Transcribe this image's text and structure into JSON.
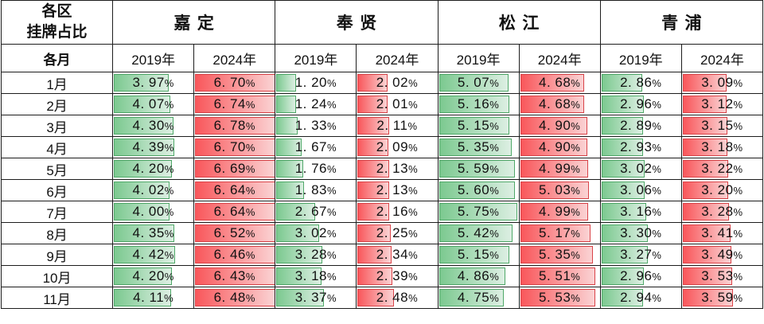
{
  "table": {
    "corner_line1": "各区",
    "corner_line2": "挂牌占比",
    "month_col_header": "各月"
  },
  "colors": {
    "bar_green_start": "#7cc990",
    "bar_green_end": "#ddefe3",
    "bar_green_border": "#4fa868",
    "bar_red_start": "#f9575b",
    "bar_red_end": "#fad3d4",
    "bar_red_border": "#d94348",
    "grid_line": "#1d1d1d",
    "text": "#111111"
  },
  "chart_data": {
    "type": "table",
    "title": "各区挂牌占比",
    "row_header": "各月",
    "unit": "%",
    "districts": [
      "嘉定",
      "奉贤",
      "松江",
      "青浦"
    ],
    "years": [
      "2019年",
      "2024年"
    ],
    "columns": [
      "嘉定 2019年",
      "嘉定 2024年",
      "奉贤 2019年",
      "奉贤 2024年",
      "松江 2019年",
      "松江 2024年",
      "青浦 2019年",
      "青浦 2024年"
    ],
    "year_bar_styles": [
      "green",
      "red"
    ],
    "bar_scale": {
      "offset_pct": 5,
      "pct_per_unit": 16,
      "cap_pct": 100
    },
    "rows": [
      {
        "month": "1月",
        "values": [
          3.97,
          6.7,
          1.2,
          2.02,
          5.07,
          4.68,
          2.86,
          3.09
        ]
      },
      {
        "month": "2月",
        "values": [
          4.07,
          6.74,
          1.24,
          2.01,
          5.16,
          4.68,
          2.96,
          3.12
        ]
      },
      {
        "month": "3月",
        "values": [
          4.3,
          6.78,
          1.33,
          2.11,
          5.15,
          4.9,
          2.89,
          3.15
        ]
      },
      {
        "month": "4月",
        "values": [
          4.39,
          6.7,
          1.67,
          2.09,
          5.35,
          4.9,
          2.93,
          3.18
        ]
      },
      {
        "month": "5月",
        "values": [
          4.2,
          6.69,
          1.76,
          2.13,
          5.59,
          4.99,
          3.02,
          3.22
        ]
      },
      {
        "month": "6月",
        "values": [
          4.02,
          6.64,
          1.83,
          2.13,
          5.6,
          5.03,
          3.06,
          3.2
        ]
      },
      {
        "month": "7月",
        "values": [
          4.0,
          6.64,
          2.67,
          2.16,
          5.75,
          4.99,
          3.16,
          3.28
        ]
      },
      {
        "month": "8月",
        "values": [
          4.35,
          6.52,
          3.02,
          2.25,
          5.42,
          5.17,
          3.3,
          3.41
        ]
      },
      {
        "month": "9月",
        "values": [
          4.42,
          6.46,
          3.28,
          2.34,
          5.15,
          5.35,
          3.27,
          3.49
        ]
      },
      {
        "month": "10月",
        "values": [
          4.2,
          6.43,
          3.18,
          2.39,
          4.86,
          5.51,
          2.96,
          3.53
        ]
      },
      {
        "month": "11月",
        "values": [
          4.11,
          6.48,
          3.37,
          2.48,
          4.75,
          5.53,
          2.94,
          3.59
        ]
      }
    ]
  }
}
